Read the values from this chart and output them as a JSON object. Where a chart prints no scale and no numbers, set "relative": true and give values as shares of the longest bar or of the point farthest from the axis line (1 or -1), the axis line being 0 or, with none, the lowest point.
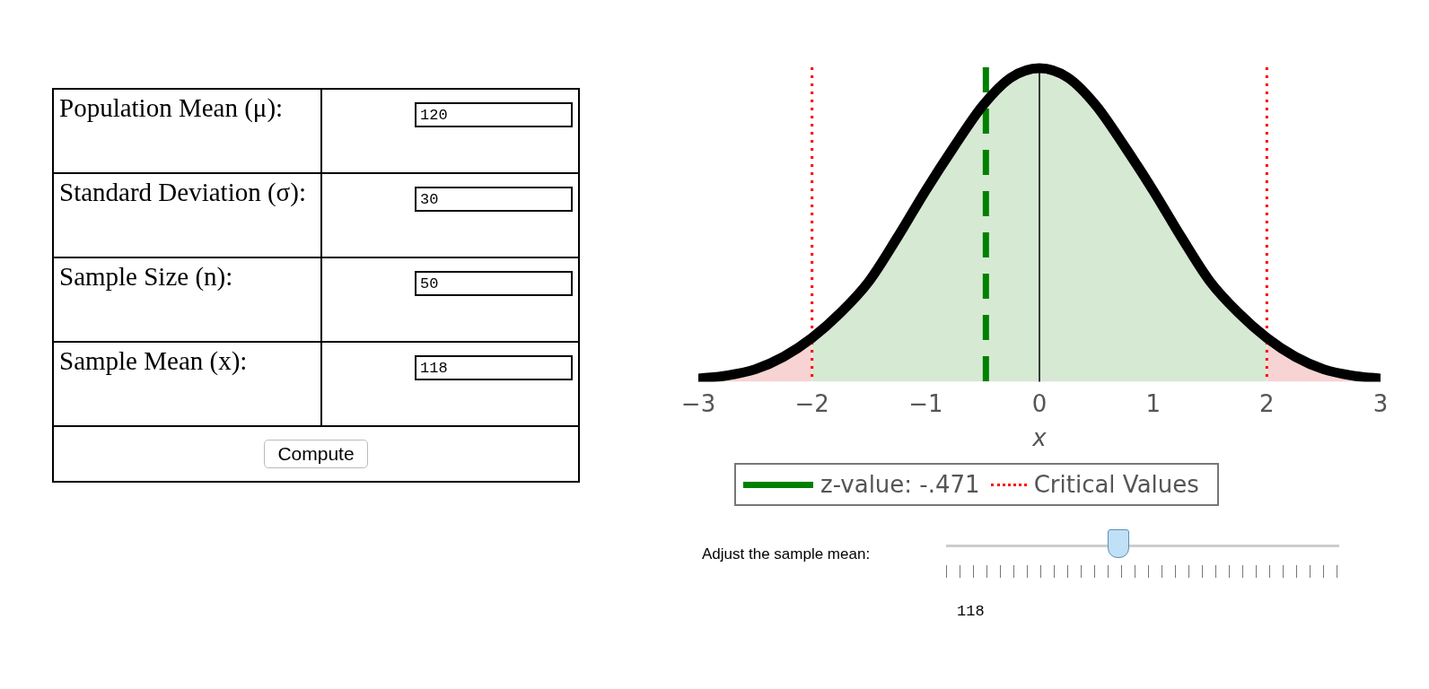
{
  "chart_data": [
    {
      "type": "other",
      "annotations": [
        "Population Mean (μ):",
        "120",
        "Standard Deviation (σ):",
        "30",
        "Sample Size (n):",
        "50",
        "Sample Mean (x):",
        "118",
        "Compute"
      ]
    },
    {
      "type": "area",
      "relative": true,
      "xlabel": "x",
      "xlim": [
        -3,
        3
      ],
      "xticks": [
        -3,
        -2,
        -1,
        0,
        1,
        2,
        3
      ],
      "grid": false,
      "legend": "bottom",
      "marker": "none",
      "series": [
        {
          "type": "area",
          "color": "#f8d3d3",
          "x": [
            -3,
            -2.75,
            -2.5,
            -2.25,
            -2
          ],
          "values": [
            0.01,
            0.02,
            0.04,
            0.08,
            0.14
          ]
        },
        {
          "type": "area",
          "color": "#d6e9d3",
          "x": [
            -2,
            -1.75,
            -1.5,
            -1.25,
            -1,
            -0.75,
            -0.5,
            -0.25,
            0,
            0.25,
            0.5,
            0.75,
            1,
            1.25,
            1.5,
            1.75,
            2
          ],
          "values": [
            0.14,
            0.22,
            0.32,
            0.46,
            0.61,
            0.75,
            0.88,
            0.97,
            1,
            0.97,
            0.88,
            0.75,
            0.61,
            0.46,
            0.32,
            0.22,
            0.14
          ]
        },
        {
          "type": "area",
          "color": "#f8d3d3",
          "x": [
            2,
            2.25,
            2.5,
            2.75,
            3
          ],
          "values": [
            0.14,
            0.08,
            0.04,
            0.02,
            0.01
          ]
        },
        {
          "type": "line",
          "color": "#000000",
          "x": [
            -3,
            -2.75,
            -2.5,
            -2.25,
            -2,
            -1.75,
            -1.5,
            -1.25,
            -1,
            -0.75,
            -0.5,
            -0.25,
            0,
            0.25,
            0.5,
            0.75,
            1,
            1.25,
            1.5,
            1.75,
            2,
            2.25,
            2.5,
            2.75,
            3
          ],
          "values": [
            0.01,
            0.02,
            0.04,
            0.08,
            0.14,
            0.22,
            0.32,
            0.46,
            0.61,
            0.75,
            0.88,
            0.97,
            1,
            0.97,
            0.88,
            0.75,
            0.61,
            0.46,
            0.32,
            0.22,
            0.14,
            0.08,
            0.04,
            0.02,
            0.01
          ]
        }
      ],
      "ref_lines": [
        {
          "axis": "x",
          "value": 0,
          "color": "#000000",
          "line_style": "solid"
        },
        {
          "axis": "x",
          "value": -0.471,
          "label": "z-value: -.471",
          "color": "#008000",
          "line_style": "dashed"
        },
        {
          "axis": "x",
          "value": -2,
          "label": "Critical Values",
          "color": "#ff0000",
          "line_style": "dotted"
        },
        {
          "axis": "x",
          "value": 2,
          "color": "#ff0000",
          "line_style": "dotted"
        }
      ],
      "annotations": [
        "Adjust the sample mean:",
        "118"
      ]
    }
  ]
}
